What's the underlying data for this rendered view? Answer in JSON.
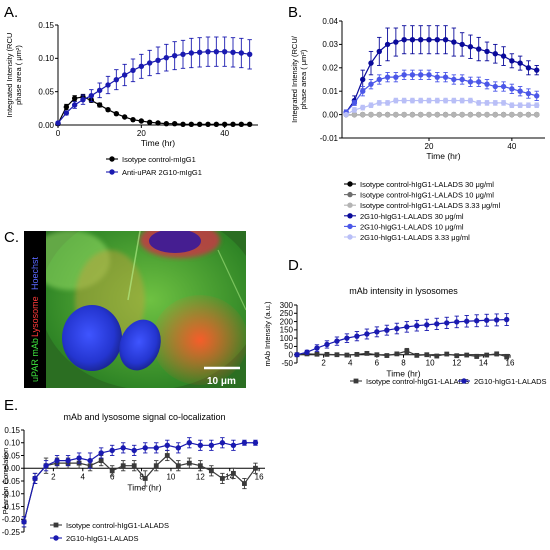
{
  "figure": {
    "panels": {
      "A": {
        "letter": "A."
      },
      "B": {
        "letter": "B."
      },
      "C": {
        "letter": "C.",
        "labels": [
          "uPAR mAb",
          "Lysosome",
          "Hoechst"
        ],
        "label_colors": [
          "#3ee33e",
          "#ff3a3a",
          "#5a68ff"
        ],
        "scale_bar": "10 μm"
      },
      "D": {
        "letter": "D."
      },
      "E": {
        "letter": "E."
      }
    }
  },
  "chart_data": [
    {
      "id": "A",
      "type": "line",
      "title": "",
      "xlabel": "Time (hr)",
      "ylabel": [
        "Integrated Intensity (RCU",
        "phase area ( μm²)"
      ],
      "xlim": [
        0,
        48
      ],
      "ylim": [
        0,
        0.15
      ],
      "xticks": [
        0,
        20,
        40
      ],
      "yticks": [
        0.0,
        0.05,
        0.1,
        0.15
      ],
      "ytick_labels": [
        "0.00",
        "0.05",
        "0.10",
        "0.15"
      ],
      "grid": false,
      "legend_position": "below",
      "x": [
        0,
        2,
        4,
        6,
        8,
        10,
        12,
        14,
        16,
        18,
        20,
        22,
        24,
        26,
        28,
        30,
        32,
        34,
        36,
        38,
        40,
        42,
        44,
        46
      ],
      "series": [
        {
          "name": "Isotype control-mIgG1",
          "color": "#000000",
          "marker": "circle",
          "values": [
            0.002,
            0.027,
            0.04,
            0.042,
            0.037,
            0.03,
            0.023,
            0.017,
            0.012,
            0.008,
            0.006,
            0.004,
            0.003,
            0.002,
            0.002,
            0.001,
            0.001,
            0.001,
            0.001,
            0.001,
            0.001,
            0.001,
            0.001,
            0.001
          ],
          "errors": [
            0.001,
            0.004,
            0.004,
            0.004,
            0.003,
            0.003,
            0.002,
            0.002,
            0.001,
            0.001,
            0.001,
            0.001,
            0.001,
            0.001,
            0.001,
            0.001,
            0.001,
            0.001,
            0.001,
            0.001,
            0.001,
            0.001,
            0.001,
            0.001
          ]
        },
        {
          "name": "Anti-uPAR 2G10-mIgG1",
          "color": "#1a1ab0",
          "marker": "circle",
          "values": [
            0.003,
            0.018,
            0.03,
            0.038,
            0.044,
            0.052,
            0.06,
            0.068,
            0.075,
            0.082,
            0.088,
            0.093,
            0.097,
            0.101,
            0.104,
            0.106,
            0.108,
            0.109,
            0.11,
            0.11,
            0.11,
            0.109,
            0.108,
            0.106
          ],
          "errors": [
            0.001,
            0.003,
            0.005,
            0.007,
            0.009,
            0.011,
            0.013,
            0.015,
            0.016,
            0.017,
            0.018,
            0.019,
            0.02,
            0.02,
            0.021,
            0.021,
            0.022,
            0.022,
            0.022,
            0.022,
            0.022,
            0.022,
            0.022,
            0.022
          ]
        }
      ]
    },
    {
      "id": "B",
      "type": "line",
      "title": "",
      "xlabel": "Time (hr)",
      "ylabel": [
        "Integrated Intensity (RCU/",
        "phase area ( μm²)"
      ],
      "xlim": [
        -1,
        48
      ],
      "ylim": [
        -0.01,
        0.04
      ],
      "xticks": [
        20,
        40
      ],
      "yticks": [
        -0.01,
        0.0,
        0.01,
        0.02,
        0.03,
        0.04
      ],
      "ytick_labels": [
        "-0.01",
        "0.00",
        "0.01",
        "0.02",
        "0.03",
        "0.04"
      ],
      "grid": false,
      "legend_position": "below",
      "x": [
        0,
        2,
        4,
        6,
        8,
        10,
        12,
        14,
        16,
        18,
        20,
        22,
        24,
        26,
        28,
        30,
        32,
        34,
        36,
        38,
        40,
        42,
        44,
        46
      ],
      "series": [
        {
          "name": "Isotype control-hIgG1-LALADS 30 μg/ml",
          "color": "#000000",
          "marker": "circle",
          "values": [
            0,
            0,
            0,
            0,
            0,
            0,
            0,
            0,
            0,
            0,
            0,
            0,
            0,
            0,
            0,
            0,
            0,
            0,
            0,
            0,
            0,
            0,
            0,
            0
          ],
          "errors": [
            0,
            0,
            0,
            0,
            0,
            0,
            0,
            0,
            0,
            0,
            0,
            0,
            0,
            0,
            0,
            0,
            0,
            0,
            0,
            0,
            0,
            0,
            0,
            0
          ]
        },
        {
          "name": "Isotype control-hIgG1-LALADS 10 μg/ml",
          "color": "#6e6e6e",
          "marker": "circle",
          "values": [
            0,
            0,
            0,
            0,
            0,
            0,
            0,
            0,
            0,
            0,
            0,
            0,
            0,
            0,
            0,
            0,
            0,
            0,
            0,
            0,
            0,
            0,
            0,
            0
          ],
          "errors": [
            0,
            0,
            0,
            0,
            0,
            0,
            0,
            0,
            0,
            0,
            0,
            0,
            0,
            0,
            0,
            0,
            0,
            0,
            0,
            0,
            0,
            0,
            0,
            0
          ]
        },
        {
          "name": "Isotype control-hIgG1-LALADS 3.33 μg/ml",
          "color": "#b4b4b4",
          "marker": "circle",
          "values": [
            0,
            0,
            0,
            0,
            0,
            0,
            0,
            0,
            0,
            0,
            0,
            0,
            0,
            0,
            0,
            0,
            0,
            0,
            0,
            0,
            0,
            0,
            0,
            0
          ],
          "errors": [
            0,
            0,
            0,
            0,
            0,
            0,
            0,
            0,
            0,
            0,
            0,
            0,
            0,
            0,
            0,
            0,
            0,
            0,
            0,
            0,
            0,
            0,
            0,
            0
          ]
        },
        {
          "name": "2G10-hIgG1-LALADS 30 μg/ml",
          "color": "#0a0a9a",
          "marker": "circle",
          "values": [
            0.001,
            0.006,
            0.015,
            0.022,
            0.027,
            0.03,
            0.031,
            0.032,
            0.032,
            0.032,
            0.032,
            0.032,
            0.032,
            0.031,
            0.03,
            0.029,
            0.028,
            0.027,
            0.026,
            0.025,
            0.023,
            0.022,
            0.02,
            0.019
          ],
          "errors": [
            0.001,
            0.002,
            0.004,
            0.005,
            0.006,
            0.007,
            0.006,
            0.006,
            0.006,
            0.006,
            0.006,
            0.006,
            0.006,
            0.006,
            0.005,
            0.005,
            0.005,
            0.004,
            0.004,
            0.004,
            0.003,
            0.003,
            0.003,
            0.002
          ]
        },
        {
          "name": "2G10-hIgG1-LALADS 10 μg/ml",
          "color": "#4b57e8",
          "marker": "circle",
          "values": [
            0.001,
            0.005,
            0.01,
            0.013,
            0.015,
            0.016,
            0.016,
            0.017,
            0.017,
            0.017,
            0.017,
            0.016,
            0.016,
            0.015,
            0.015,
            0.014,
            0.014,
            0.013,
            0.012,
            0.012,
            0.011,
            0.01,
            0.009,
            0.008
          ],
          "errors": [
            0.001,
            0.001,
            0.002,
            0.002,
            0.002,
            0.002,
            0.002,
            0.002,
            0.002,
            0.002,
            0.002,
            0.002,
            0.002,
            0.002,
            0.002,
            0.002,
            0.002,
            0.002,
            0.002,
            0.002,
            0.002,
            0.002,
            0.002,
            0.002
          ]
        },
        {
          "name": "2G10-hIgG1-LALADS 3.33 μg/ml",
          "color": "#b9bff7",
          "marker": "circle",
          "values": [
            0.0,
            0.002,
            0.003,
            0.004,
            0.005,
            0.005,
            0.006,
            0.006,
            0.006,
            0.006,
            0.006,
            0.006,
            0.006,
            0.006,
            0.006,
            0.006,
            0.005,
            0.005,
            0.005,
            0.005,
            0.004,
            0.004,
            0.004,
            0.004
          ],
          "errors": [
            0.0,
            0.001,
            0.001,
            0.001,
            0.001,
            0.001,
            0.001,
            0.001,
            0.001,
            0.001,
            0.001,
            0.001,
            0.001,
            0.001,
            0.001,
            0.001,
            0.001,
            0.001,
            0.001,
            0.001,
            0.001,
            0.001,
            0.001,
            0.001
          ]
        }
      ]
    },
    {
      "id": "D",
      "type": "line",
      "title": "mAb intensity in lysosomes",
      "xlabel": "Time (hr)",
      "ylabel": [
        "mAb Intensity (a.u.)"
      ],
      "xlim": [
        0,
        16
      ],
      "ylim": [
        -50,
        300
      ],
      "xticks": [
        2,
        4,
        6,
        8,
        10,
        12,
        14,
        16
      ],
      "yticks": [
        -50,
        0,
        50,
        100,
        150,
        200,
        250,
        300
      ],
      "ytick_labels": [
        "-50",
        "0",
        "50",
        "100",
        "150",
        "200",
        "250",
        "300"
      ],
      "grid": false,
      "legend_position": "below",
      "x": [
        0,
        0.75,
        1.5,
        2.25,
        3,
        3.75,
        4.5,
        5.25,
        6,
        6.75,
        7.5,
        8.25,
        9,
        9.75,
        10.5,
        11.25,
        12,
        12.75,
        13.5,
        14.25,
        15,
        15.75
      ],
      "series": [
        {
          "name": "Isotype control-hIgG1-LALADS",
          "color": "#3a3a3a",
          "marker": "square",
          "values": [
            0,
            5,
            3,
            2,
            0,
            -2,
            2,
            8,
            0,
            -5,
            5,
            22,
            -4,
            0,
            -8,
            4,
            -6,
            -2,
            -10,
            -2,
            5,
            -12
          ],
          "errors": [
            0,
            8,
            6,
            6,
            5,
            6,
            6,
            10,
            8,
            8,
            10,
            16,
            10,
            8,
            10,
            8,
            10,
            8,
            12,
            8,
            12,
            14
          ]
        },
        {
          "name": "2G10-hIgG1-LALADS",
          "color": "#1a1ab0",
          "marker": "circle",
          "values": [
            0,
            15,
            40,
            62,
            82,
            100,
            112,
            125,
            138,
            148,
            158,
            168,
            175,
            180,
            186,
            192,
            198,
            202,
            205,
            208,
            210,
            212
          ],
          "errors": [
            0,
            12,
            20,
            22,
            25,
            26,
            28,
            30,
            30,
            30,
            32,
            32,
            32,
            34,
            34,
            34,
            35,
            35,
            36,
            36,
            36,
            36
          ]
        }
      ]
    },
    {
      "id": "E",
      "type": "line",
      "title": "mAb and lysosome signal co-localization",
      "xlabel": "Time (hr)",
      "ylabel": [
        "Pearson Correlation"
      ],
      "xlim": [
        0,
        16.4
      ],
      "ylim": [
        -0.25,
        0.15
      ],
      "xticks": [
        2,
        4,
        6,
        8,
        10,
        12,
        14,
        16
      ],
      "yticks": [
        -0.25,
        -0.2,
        -0.15,
        -0.1,
        -0.05,
        0.0,
        0.05,
        0.1,
        0.15
      ],
      "ytick_labels": [
        "-0.25",
        "-0.20",
        "-0.15",
        "-0.10",
        "-0.05",
        "0.00",
        "0.05",
        "0.10",
        "0.15"
      ],
      "grid": false,
      "legend_position": "bottom-left",
      "x": [
        0,
        0.75,
        1.5,
        2.25,
        3,
        3.75,
        4.5,
        5.25,
        6,
        6.75,
        7.5,
        8.25,
        9,
        9.75,
        10.5,
        11.25,
        12,
        12.75,
        13.5,
        14.25,
        15,
        15.75
      ],
      "series": [
        {
          "name": "Isotype control-hIgG1-LALADS",
          "color": "#3a3a3a",
          "marker": "square",
          "values": [
            -0.21,
            -0.04,
            0.01,
            0.02,
            0.02,
            0.02,
            0.01,
            0.03,
            -0.01,
            0.01,
            0.01,
            -0.04,
            0.01,
            0.05,
            0.01,
            0.02,
            0.01,
            -0.01,
            -0.04,
            -0.02,
            -0.06,
            0.0
          ],
          "errors": [
            0.02,
            0.02,
            0.03,
            0.02,
            0.02,
            0.02,
            0.02,
            0.02,
            0.02,
            0.02,
            0.02,
            0.03,
            0.02,
            0.02,
            0.02,
            0.02,
            0.02,
            0.02,
            0.02,
            0.02,
            0.02,
            0.02
          ]
        },
        {
          "name": "2G10-hIgG1-LALADS",
          "color": "#1a1ab0",
          "marker": "circle",
          "values": [
            -0.21,
            -0.04,
            0.01,
            0.03,
            0.03,
            0.04,
            0.03,
            0.06,
            0.07,
            0.08,
            0.07,
            0.08,
            0.08,
            0.09,
            0.08,
            0.1,
            0.09,
            0.09,
            0.1,
            0.09,
            0.1,
            0.1
          ],
          "errors": [
            0.02,
            0.02,
            0.02,
            0.02,
            0.02,
            0.02,
            0.03,
            0.02,
            0.02,
            0.02,
            0.02,
            0.02,
            0.02,
            0.02,
            0.02,
            0.02,
            0.02,
            0.02,
            0.02,
            0.02,
            0.01,
            0.01
          ]
        }
      ]
    }
  ]
}
